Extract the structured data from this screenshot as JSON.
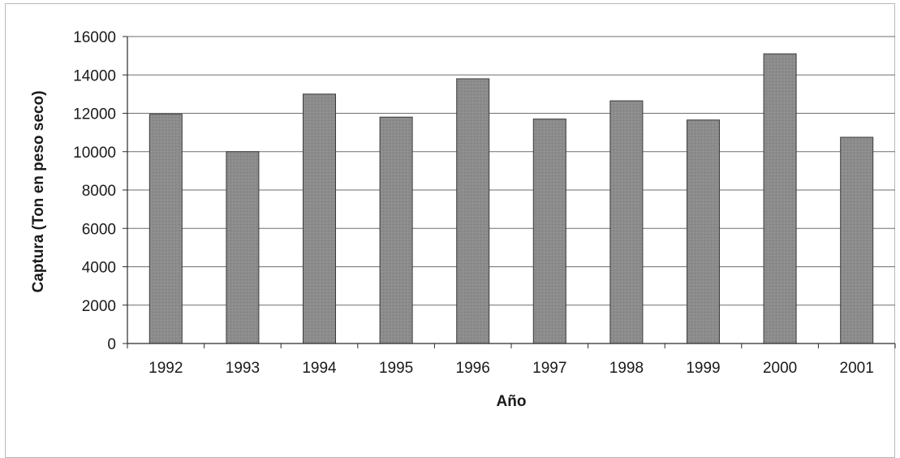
{
  "chart_data": {
    "type": "bar",
    "title": "",
    "xlabel": "Año",
    "ylabel": "Captura (Ton en peso seco)",
    "categories": [
      "1992",
      "1993",
      "1994",
      "1995",
      "1996",
      "1997",
      "1998",
      "1999",
      "2000",
      "2001"
    ],
    "values": [
      11950,
      10000,
      13000,
      11800,
      13800,
      11700,
      12650,
      11650,
      15100,
      10750
    ],
    "ylim": [
      0,
      16000
    ],
    "yticks": [
      "0",
      "2000",
      "4000",
      "6000",
      "8000",
      "10000",
      "12000",
      "14000",
      "16000"
    ],
    "grid": true,
    "legend": "none",
    "colors": {
      "bar": "#8c8c8c",
      "bar_edge": "#3a3a3a",
      "grid": "#6e6e6e",
      "axis": "#2a2a2a"
    }
  }
}
